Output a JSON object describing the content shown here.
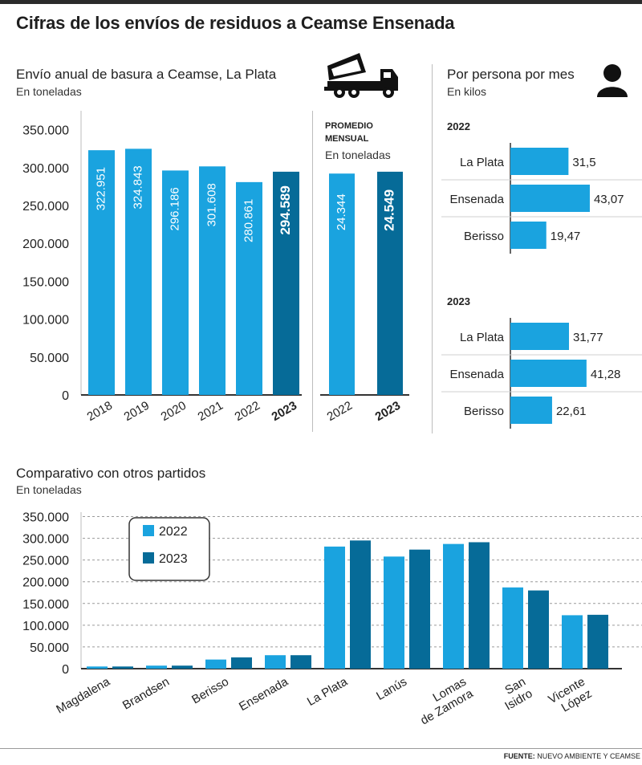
{
  "header": {
    "title": "Cifras de los envíos de residuos a Ceamse Ensenada"
  },
  "annual": {
    "title": "Envío anual de basura a Ceamse, La Plata",
    "subtitle": "En toneladas",
    "icon": "dump-truck-icon"
  },
  "monthly": {
    "title_line1": "PROMEDIO",
    "title_line2": "MENSUAL",
    "subtitle": "En toneladas"
  },
  "per_person": {
    "title": "Por persona por mes",
    "subtitle": "En kilos",
    "icon": "person-icon"
  },
  "comparative": {
    "title": "Comparativo con otros partidos",
    "subtitle": "En toneladas"
  },
  "footer": {
    "label": "FUENTE:",
    "text": "NUEVO AMBIENTE Y CEAMSE"
  },
  "colors": {
    "light": "#1aa3df",
    "dark": "#066b98",
    "grid": "#9a9a9a"
  },
  "chart_data": [
    {
      "id": "annual",
      "type": "bar",
      "categories": [
        "2018",
        "2019",
        "2020",
        "2021",
        "2022",
        "2023"
      ],
      "values": [
        322951,
        324843,
        296186,
        301608,
        280861,
        294589
      ],
      "labels": [
        "322.951",
        "324.843",
        "296.186",
        "301.608",
        "280.861",
        "294.589"
      ],
      "highlight": "2023",
      "ylim": [
        0,
        375000
      ],
      "yticks": [
        0,
        50000,
        100000,
        150000,
        200000,
        250000,
        300000,
        350000
      ],
      "ytick_labels": [
        "0",
        "50.000",
        "100.000",
        "150.000",
        "200.000",
        "250.000",
        "300.000",
        "350.000"
      ]
    },
    {
      "id": "monthly",
      "type": "bar",
      "categories": [
        "2022",
        "2023"
      ],
      "values": [
        24344,
        24549
      ],
      "labels": [
        "24.344",
        "24.549"
      ],
      "highlight": "2023",
      "ylim": [
        0,
        31250
      ]
    },
    {
      "id": "per_person_2022",
      "type": "bar",
      "orientation": "horizontal",
      "title": "2022",
      "categories": [
        "La Plata",
        "Ensenada",
        "Berisso"
      ],
      "values": [
        31.5,
        43.07,
        19.47
      ],
      "labels": [
        "31,5",
        "43,07",
        "19,47"
      ],
      "xlim": [
        0,
        47
      ]
    },
    {
      "id": "per_person_2023",
      "type": "bar",
      "orientation": "horizontal",
      "title": "2023",
      "categories": [
        "La Plata",
        "Ensenada",
        "Berisso"
      ],
      "values": [
        31.77,
        41.28,
        22.61
      ],
      "labels": [
        "31,77",
        "41,28",
        "22,61"
      ],
      "xlim": [
        0,
        47
      ]
    },
    {
      "id": "comparative",
      "type": "bar",
      "categories": [
        [
          "Magdalena"
        ],
        [
          "Brandsen"
        ],
        [
          "Berisso"
        ],
        [
          "Ensenada"
        ],
        [
          "La Plata"
        ],
        [
          "Lanús"
        ],
        [
          "Lomas",
          "de Zamora"
        ],
        [
          "San",
          "Isidro"
        ],
        [
          "Vicente",
          "López"
        ]
      ],
      "series": [
        {
          "name": "2022",
          "values": [
            5000,
            7000,
            21000,
            31000,
            281000,
            258000,
            287000,
            187000,
            123000
          ]
        },
        {
          "name": "2023",
          "values": [
            5000,
            7000,
            26000,
            31000,
            295000,
            274000,
            291000,
            180000,
            124000
          ]
        }
      ],
      "legend": "top-left",
      "grid": true,
      "ylim": [
        0,
        375000
      ],
      "yticks": [
        0,
        50000,
        100000,
        150000,
        200000,
        250000,
        300000,
        350000
      ],
      "ytick_labels": [
        "0",
        "50.000",
        "100.000",
        "150.000",
        "200.000",
        "250.000",
        "300.000",
        "350.000"
      ]
    }
  ]
}
